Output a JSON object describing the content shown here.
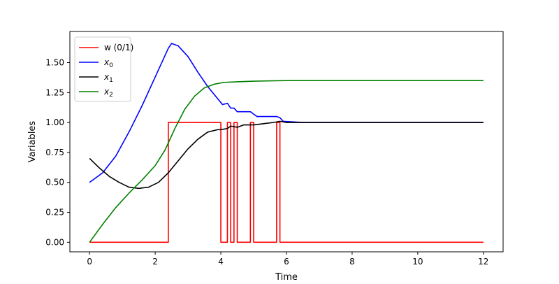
{
  "chart_data": {
    "type": "line",
    "xlabel": "Time",
    "ylabel": "Variables",
    "xlim": [
      -0.6,
      12.6
    ],
    "ylim": [
      -0.08,
      1.76
    ],
    "xticks": [
      0,
      2,
      4,
      6,
      8,
      10,
      12
    ],
    "xtick_labels": [
      "0",
      "2",
      "4",
      "6",
      "8",
      "10",
      "12"
    ],
    "yticks": [
      0.0,
      0.25,
      0.5,
      0.75,
      1.0,
      1.25,
      1.5
    ],
    "ytick_labels": [
      "0.00",
      "0.25",
      "0.50",
      "0.75",
      "1.00",
      "1.25",
      "1.50"
    ],
    "grid": false,
    "legend_position": "top-left",
    "series": [
      {
        "name": "w (0/1)",
        "color": "#ff0000",
        "x": [
          0,
          2.4,
          2.4,
          4.0,
          4.0,
          4.2,
          4.2,
          4.3,
          4.3,
          4.4,
          4.4,
          4.5,
          4.5,
          4.9,
          4.9,
          5.0,
          5.0,
          5.7,
          5.7,
          5.8,
          5.8,
          12
        ],
        "y": [
          0,
          0,
          1,
          1,
          0,
          0,
          1,
          1,
          0,
          0,
          1,
          1,
          0,
          0,
          1,
          1,
          0,
          0,
          1,
          1,
          0,
          0
        ]
      },
      {
        "name": "$x_0$",
        "color": "#0000ff",
        "x": [
          0,
          0.4,
          0.8,
          1.2,
          1.6,
          2.0,
          2.4,
          2.5,
          2.7,
          3.0,
          3.3,
          3.6,
          3.9,
          4.05,
          4.2,
          4.3,
          4.4,
          4.5,
          4.6,
          4.9,
          5.0,
          5.1,
          5.7,
          5.8,
          5.9,
          6.5,
          7.5,
          9.0,
          10.5,
          12.0
        ],
        "y": [
          0.5,
          0.58,
          0.72,
          0.92,
          1.14,
          1.38,
          1.62,
          1.66,
          1.64,
          1.55,
          1.42,
          1.3,
          1.2,
          1.15,
          1.16,
          1.12,
          1.12,
          1.09,
          1.09,
          1.09,
          1.07,
          1.05,
          1.05,
          1.04,
          1.01,
          1.0,
          1.0,
          1.0,
          1.0,
          1.0
        ]
      },
      {
        "name": "$x_1$",
        "color": "#000000",
        "x": [
          0,
          0.3,
          0.6,
          0.9,
          1.2,
          1.5,
          1.8,
          2.1,
          2.4,
          2.7,
          3.0,
          3.3,
          3.6,
          3.9,
          4.0,
          4.2,
          4.3,
          4.5,
          4.7,
          4.9,
          5.0,
          5.3,
          5.6,
          5.8,
          6.0,
          7.0,
          8.0,
          9.0,
          10.0,
          12.0
        ],
        "y": [
          0.7,
          0.62,
          0.55,
          0.5,
          0.46,
          0.45,
          0.46,
          0.5,
          0.58,
          0.68,
          0.78,
          0.86,
          0.92,
          0.94,
          0.94,
          0.95,
          0.97,
          0.96,
          0.98,
          0.98,
          0.98,
          0.99,
          1.0,
          1.01,
          1.0,
          1.0,
          1.0,
          1.0,
          1.0,
          1.0
        ]
      },
      {
        "name": "$x_2$",
        "color": "#008000",
        "x": [
          0,
          0.4,
          0.8,
          1.2,
          1.6,
          2.0,
          2.3,
          2.6,
          2.9,
          3.2,
          3.5,
          3.8,
          4.1,
          4.5,
          5.0,
          6.0,
          8.0,
          10.0,
          12.0
        ],
        "y": [
          0.0,
          0.15,
          0.29,
          0.41,
          0.52,
          0.64,
          0.77,
          0.95,
          1.11,
          1.22,
          1.29,
          1.32,
          1.335,
          1.34,
          1.345,
          1.35,
          1.35,
          1.35,
          1.35
        ]
      }
    ],
    "legend_labels": [
      {
        "text": "w (0/1)",
        "sub": ""
      },
      {
        "text": "x",
        "sub": "0"
      },
      {
        "text": "x",
        "sub": "1"
      },
      {
        "text": "x",
        "sub": "2"
      }
    ]
  }
}
